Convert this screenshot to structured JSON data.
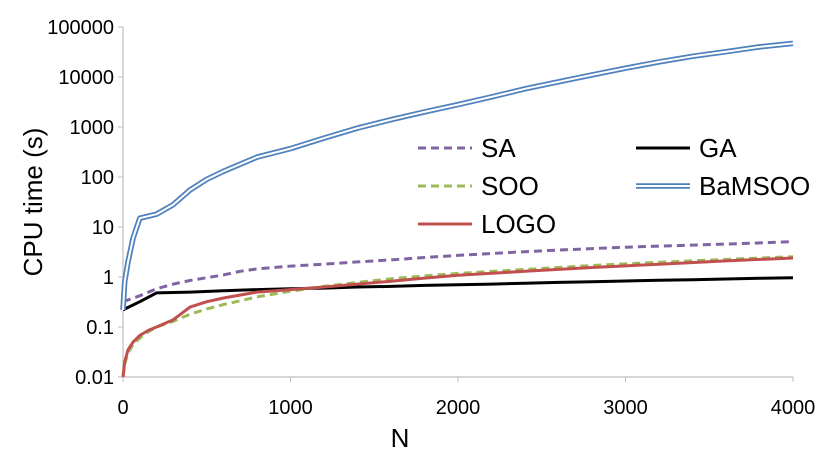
{
  "chart_data": {
    "type": "line",
    "xlabel": "N",
    "ylabel": "CPU time (s)",
    "xlim": [
      0,
      4000
    ],
    "ylim": [
      0.01,
      100000
    ],
    "yscale": "log",
    "x_ticks": [
      0,
      1000,
      2000,
      3000,
      4000
    ],
    "x_tick_labels": [
      "0",
      "1000",
      "2000",
      "3000",
      "4000"
    ],
    "y_ticks": [
      0.01,
      0.1,
      1,
      10,
      100,
      1000,
      10000,
      100000
    ],
    "y_tick_labels": [
      "0.01",
      "0.1",
      "1",
      "10",
      "100",
      "1000",
      "10000",
      "100000"
    ],
    "grid": false,
    "legend_position": "center-right",
    "series": [
      {
        "name": "SA",
        "color": "#8064a2",
        "style": "dashed",
        "x": [
          0,
          100,
          200,
          300,
          400,
          500,
          600,
          700,
          800,
          1000,
          1200,
          1400,
          1600,
          1800,
          2000,
          2200,
          2400,
          2600,
          2800,
          3000,
          3200,
          3400,
          3600,
          3800,
          4000
        ],
        "y": [
          0.32,
          0.42,
          0.58,
          0.72,
          0.85,
          0.97,
          1.1,
          1.3,
          1.45,
          1.65,
          1.8,
          2.0,
          2.2,
          2.45,
          2.7,
          2.95,
          3.2,
          3.45,
          3.7,
          3.95,
          4.15,
          4.35,
          4.55,
          4.8,
          5.1
        ]
      },
      {
        "name": "GA",
        "color": "#000000",
        "style": "solid",
        "x": [
          0,
          100,
          200,
          400,
          600,
          800,
          1000,
          1200,
          1400,
          1600,
          1800,
          2000,
          2200,
          2400,
          2600,
          2800,
          3000,
          3200,
          3400,
          3600,
          3800,
          4000
        ],
        "y": [
          0.22,
          0.32,
          0.48,
          0.5,
          0.53,
          0.56,
          0.58,
          0.6,
          0.63,
          0.65,
          0.68,
          0.7,
          0.72,
          0.75,
          0.78,
          0.8,
          0.83,
          0.86,
          0.88,
          0.91,
          0.94,
          0.97
        ]
      },
      {
        "name": "SOO",
        "color": "#9bbb59",
        "style": "dashed",
        "x": [
          0,
          10,
          30,
          60,
          100,
          150,
          200,
          300,
          400,
          500,
          600,
          800,
          1000,
          1200,
          1400,
          1600,
          1800,
          2000,
          2400,
          2800,
          3200,
          3600,
          4000
        ],
        "y": [
          0.01,
          0.018,
          0.03,
          0.045,
          0.06,
          0.08,
          0.1,
          0.13,
          0.18,
          0.23,
          0.28,
          0.4,
          0.52,
          0.65,
          0.78,
          0.92,
          1.05,
          1.18,
          1.42,
          1.7,
          1.98,
          2.25,
          2.55
        ]
      },
      {
        "name": "BaMSOO",
        "color": "#4f81bd",
        "style": "double",
        "x": [
          0,
          10,
          30,
          60,
          100,
          200,
          300,
          400,
          500,
          600,
          700,
          800,
          1000,
          1200,
          1400,
          1600,
          1800,
          2000,
          2200,
          2400,
          2600,
          2800,
          3000,
          3200,
          3400,
          3600,
          3800,
          4000
        ],
        "y": [
          0.22,
          0.8,
          2.0,
          6.0,
          15,
          18,
          28,
          55,
          90,
          130,
          180,
          250,
          370,
          600,
          950,
          1400,
          2000,
          2800,
          4000,
          5800,
          8000,
          11000,
          15000,
          20000,
          26000,
          32000,
          40000,
          47000
        ]
      },
      {
        "name": "LOGO",
        "color": "#c0504d",
        "style": "solid",
        "x": [
          0,
          10,
          30,
          60,
          100,
          150,
          200,
          300,
          400,
          500,
          600,
          800,
          1000,
          1200,
          1400,
          1600,
          1800,
          2000,
          2400,
          2800,
          3200,
          3600,
          4000
        ],
        "y": [
          0.01,
          0.02,
          0.035,
          0.05,
          0.068,
          0.085,
          0.1,
          0.14,
          0.25,
          0.32,
          0.38,
          0.5,
          0.56,
          0.63,
          0.72,
          0.82,
          0.95,
          1.08,
          1.3,
          1.55,
          1.8,
          2.1,
          2.4
        ]
      }
    ]
  }
}
